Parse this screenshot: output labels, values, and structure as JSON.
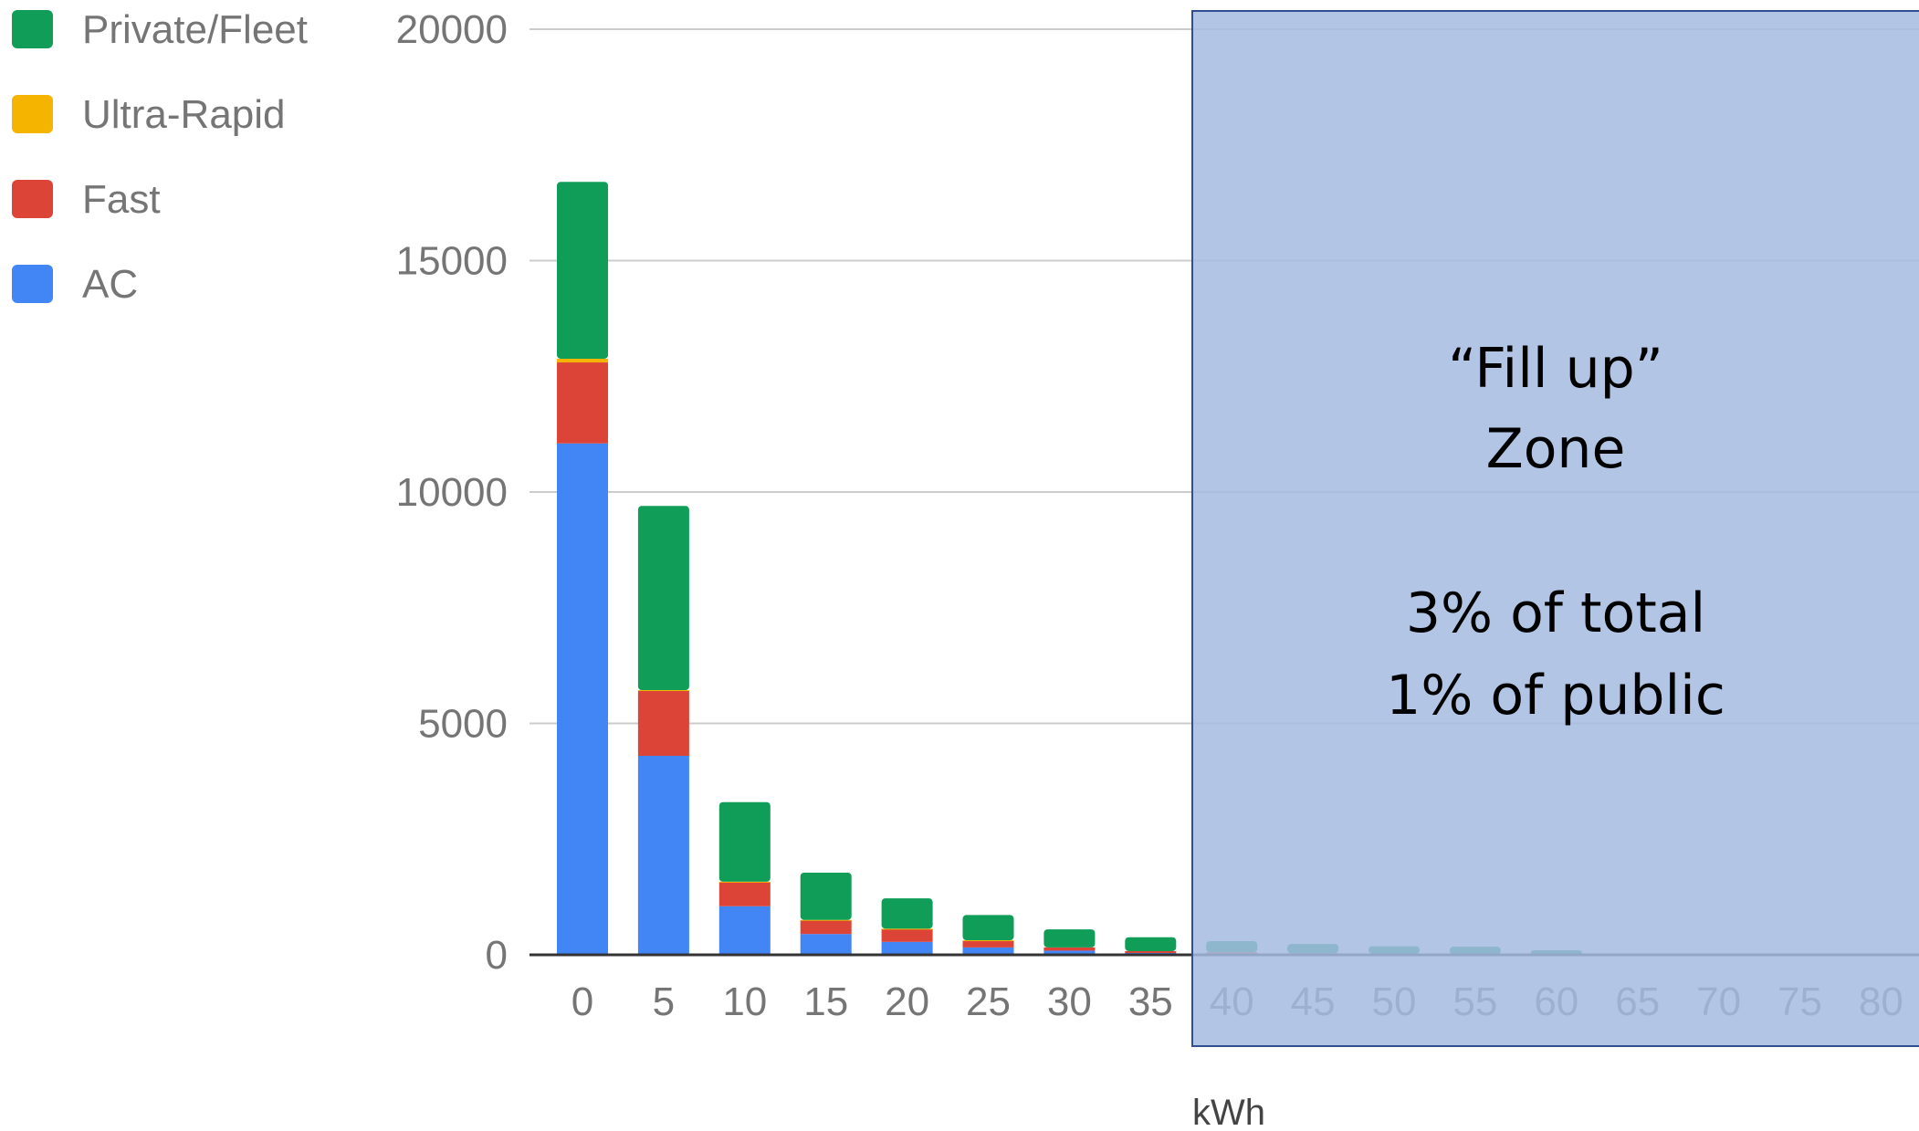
{
  "chart_data": {
    "type": "bar",
    "stacked": true,
    "x": [
      0,
      5,
      10,
      15,
      20,
      25,
      30,
      35,
      40,
      45,
      50,
      55,
      60,
      65,
      70,
      75,
      80
    ],
    "xlabel": "kWh",
    "ylabel": "",
    "ylim": [
      0,
      20000
    ],
    "yticks": [
      0,
      5000,
      10000,
      15000,
      20000
    ],
    "grid": true,
    "legend_position": "top-left",
    "series": [
      {
        "name": "AC",
        "color": "#4285F4",
        "values": [
          11050,
          4300,
          1050,
          450,
          280,
          160,
          90,
          40,
          25,
          15,
          10,
          5,
          3,
          0,
          0,
          0,
          0
        ]
      },
      {
        "name": "Fast",
        "color": "#DB4437",
        "values": [
          1750,
          1400,
          520,
          300,
          280,
          150,
          70,
          40,
          30,
          20,
          15,
          10,
          5,
          0,
          0,
          0,
          0
        ]
      },
      {
        "name": "Ultra-Rapid",
        "color": "#F4B400",
        "values": [
          80,
          20,
          10,
          5,
          5,
          5,
          0,
          0,
          0,
          0,
          0,
          0,
          0,
          0,
          0,
          0,
          0
        ]
      },
      {
        "name": "Private/Fleet",
        "color": "#0F9D58",
        "values": [
          3820,
          3980,
          1720,
          1020,
          655,
          545,
          390,
          300,
          240,
          200,
          160,
          160,
          90,
          20,
          10,
          5,
          5
        ]
      }
    ],
    "legend_order": [
      "Private/Fleet",
      "Ultra-Rapid",
      "Fast",
      "AC"
    ],
    "annotation": {
      "lines": [
        "“Fill up”",
        "Zone",
        "3% of total",
        "1% of public"
      ],
      "from_x": 40,
      "fill_color": "#A4BBE0",
      "border_color": "#2F4F8F"
    }
  }
}
